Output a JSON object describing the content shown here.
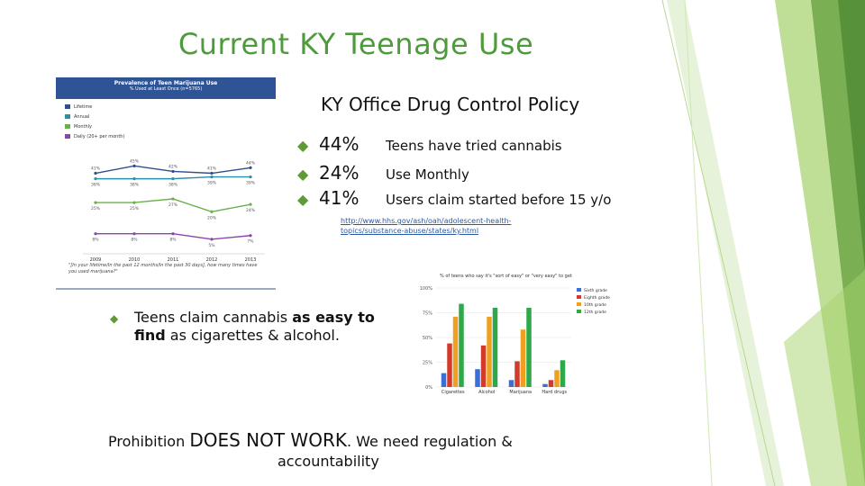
{
  "slide": {
    "title": "Current KY Teenage Use",
    "subtitle": "KY Office Drug Control Policy",
    "stats": [
      {
        "number": "44%",
        "text": "Teens have tried cannabis"
      },
      {
        "number": "24%",
        "text": "Use Monthly"
      },
      {
        "number": "41%",
        "text": "Users claim started before 15 y/o"
      }
    ],
    "source_link": "http://www.hhs.gov/ash/oah/adolescent-health-topics/substance-abuse/states/ky.html",
    "bullet": {
      "pre": "Teens claim cannabis ",
      "bold": "as easy to find",
      "post": " as cigarettes & alcohol."
    },
    "footer": {
      "pre": "Prohibition ",
      "big": "DOES NOT WORK",
      "post": ". We need regulation &",
      "line2": "accountability"
    }
  },
  "colors": {
    "title": "#4e9a3c",
    "accent": "#5e9a36",
    "header_blue": "#2f5496"
  },
  "chart_data": [
    {
      "type": "line",
      "title": "Prevalence of Teen Marijuana Use",
      "subtitle": "% Used at Least Once (n=5765)",
      "x": [
        "2009",
        "2010",
        "2011",
        "2012",
        "2013"
      ],
      "series": [
        {
          "name": "Lifetime",
          "color": "#2f4f8f",
          "values": [
            41,
            45,
            42,
            41,
            44
          ]
        },
        {
          "name": "Annual",
          "color": "#2c8fa8",
          "values": [
            38,
            38,
            38,
            39,
            39
          ]
        },
        {
          "name": "Monthly",
          "color": "#6ab04c",
          "values": [
            25,
            25,
            27,
            20,
            24
          ]
        },
        {
          "name": "Daily (20+ per month)",
          "color": "#8e44ad",
          "values": [
            8,
            8,
            8,
            5,
            7
          ]
        }
      ],
      "data_labels": [
        [
          "41%",
          "45%",
          "42%",
          "41%",
          "44%"
        ],
        [
          "38%",
          "38%",
          "38%",
          "39%",
          "39%"
        ],
        [
          "25%",
          "25%",
          "27%",
          "20%",
          "24%"
        ],
        [
          "8%",
          "8%",
          "8%",
          "5%",
          "7%"
        ]
      ],
      "ylim": [
        0,
        55
      ],
      "footnote": "\"[In your lifetime/In the past 12 months/In the past 30 days], how many times have you used marijuana?\""
    },
    {
      "type": "bar",
      "title": "% of teens who say it's \"sort of easy\" or \"very easy\" to get",
      "categories": [
        "Cigarettes",
        "Alcohol",
        "Marijuana",
        "Hard drugs"
      ],
      "series": [
        {
          "name": "Sixth grade",
          "color": "#3b6fd8",
          "values": [
            14,
            18,
            7,
            3
          ]
        },
        {
          "name": "Eighth grade",
          "color": "#d23b2a",
          "values": [
            44,
            42,
            26,
            7
          ]
        },
        {
          "name": "10th grade",
          "color": "#f0a020",
          "values": [
            71,
            71,
            58,
            17
          ]
        },
        {
          "name": "12th grade",
          "color": "#2ea84a",
          "values": [
            84,
            80,
            80,
            27
          ]
        }
      ],
      "yticks": [
        "100%",
        "75%",
        "50%",
        "25%",
        "0%"
      ],
      "ylim": [
        0,
        100
      ],
      "legend": "right"
    }
  ]
}
